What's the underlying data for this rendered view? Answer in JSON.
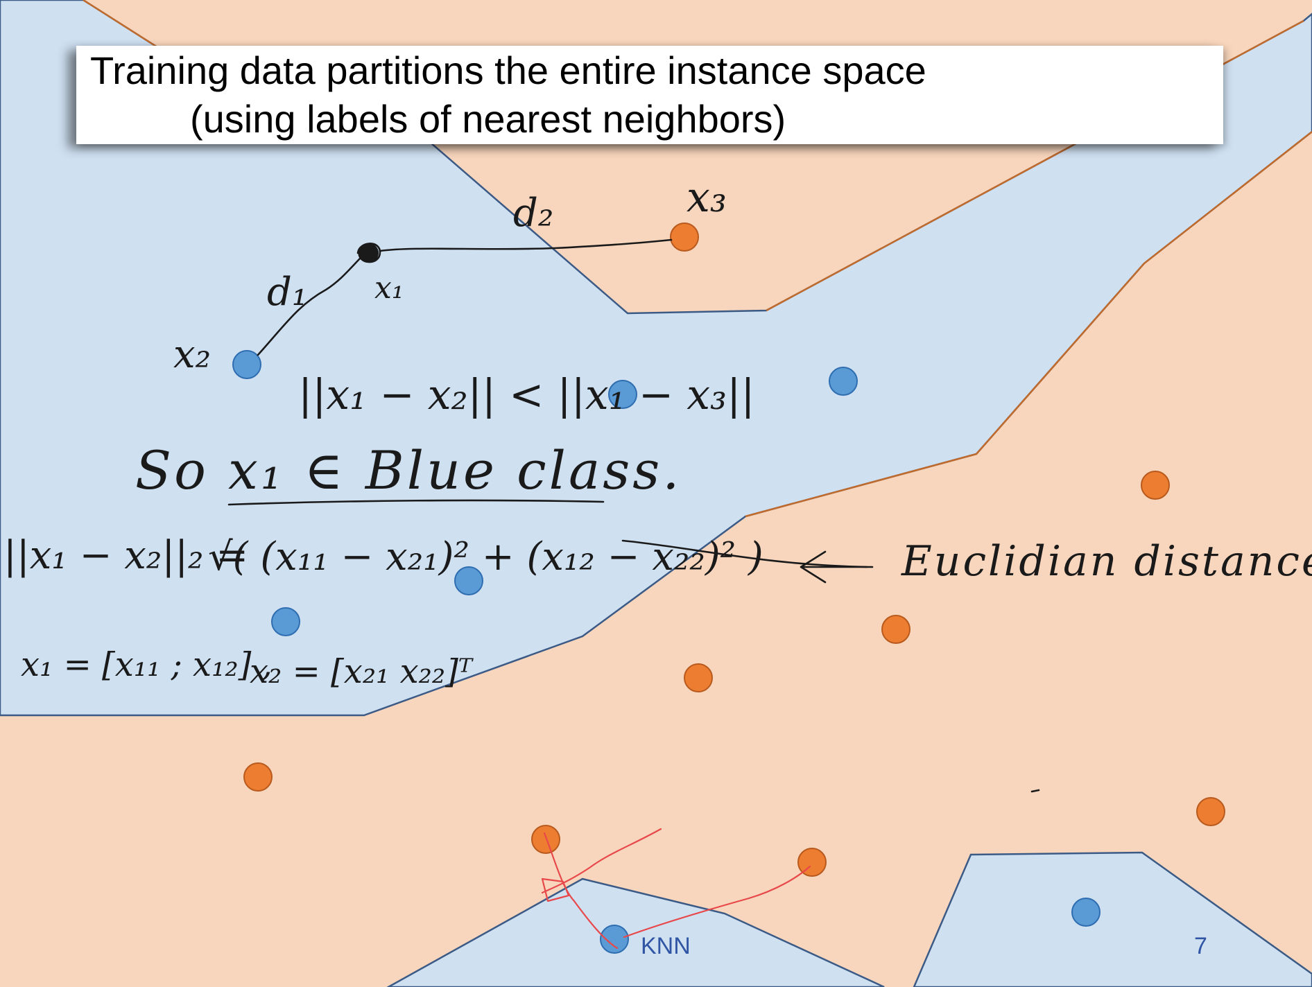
{
  "slide": {
    "title_line1": "Training data partitions the entire instance space",
    "title_line2": "(using labels of nearest neighbors)",
    "footer_label": "KNN",
    "page_number": "7"
  },
  "colors": {
    "blue_region": "#cfe0f1",
    "orange_region": "#f8d6bd",
    "blue_point": "#5b9bd5",
    "orange_point": "#ed7d31",
    "annotation_ink": "#1a1a1a",
    "annotation_red": "#e8484a",
    "footer_text": "#2f55a4"
  },
  "annotations": {
    "x1": "x₁",
    "x2": "x₂",
    "x3": "x₃",
    "d1": "d₁",
    "d2": "d₂",
    "inequality": "||x₁ − x₂|| < ||x₁ − x₃||",
    "conclusion": "So  x₁ ∈ Blue class.",
    "euclidean_formula_lhs": "||x₁ − x₂||₂ =",
    "euclidean_formula_rhs": "√( (x₁₁ − x₂₁)² + (x₁₂ − x₂₂)² )",
    "euclidean_label": "Euclidian distance.",
    "x1_vector": "x₁ = [x₁₁ ; x₁₂] ,",
    "x2_vector": "x₂ = [x₂₁  x₂₂]ᵀ"
  }
}
